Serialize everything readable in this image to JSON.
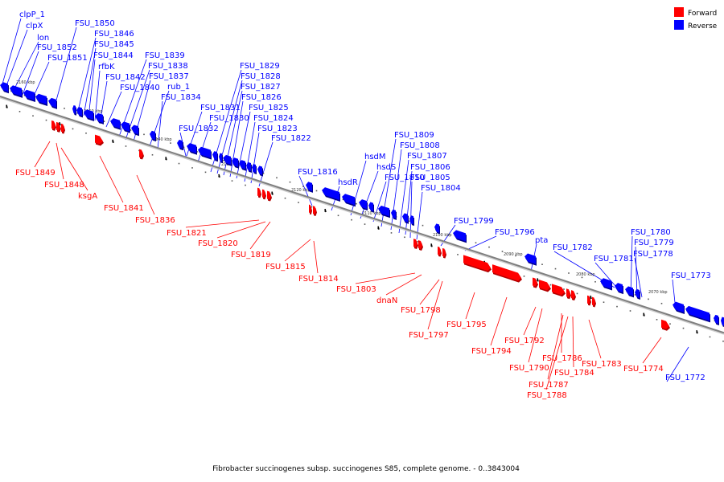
{
  "caption": "Fibrobacter succinogenes subsp. succinogenes S85, complete genome. - 0..3843004",
  "legend": [
    {
      "label": "Forward",
      "color": "#ff0000"
    },
    {
      "label": "Reverse",
      "color": "#0000ff"
    }
  ],
  "colors": {
    "forward": "#ff0000",
    "reverse": "#0000ff",
    "axis": "#7f7f7f"
  },
  "axis_ticks": [
    "2160 kbp",
    "2150 kbp",
    "2140 kbp",
    "2130 kbp",
    "2120 kbp",
    "2110 kbp",
    "2100 kbp",
    "2090 kbp",
    "2080 kbp",
    "2070 kbp"
  ],
  "reverse_labels": [
    "clpP_1",
    "clpX",
    "lon",
    "FSU_1852",
    "FSU_1851",
    "FSU_1850",
    "FSU_1846",
    "FSU_1845",
    "FSU_1844",
    "rfbK",
    "FSU_1842",
    "FSU_1840",
    "FSU_1839",
    "FSU_1838",
    "FSU_1837",
    "rub_1",
    "FSU_1834",
    "FSU_1831",
    "FSU_1830",
    "FSU_1832",
    "FSU_1829",
    "FSU_1828",
    "FSU_1827",
    "FSU_1826",
    "FSU_1825",
    "FSU_1824",
    "FSU_1823",
    "FSU_1822",
    "FSU_1816",
    "hsdR",
    "hsdM",
    "hsdS",
    "FSU_1810",
    "FSU_1809",
    "FSU_1808",
    "FSU_1807",
    "FSU_1806",
    "FSU_1805",
    "FSU_1804",
    "FSU_1799",
    "FSU_1796",
    "pta",
    "FSU_1782",
    "FSU_1781",
    "FSU_1780",
    "FSU_1779",
    "FSU_1778",
    "FSU_1773",
    "FSU_1772"
  ],
  "forward_labels": [
    "FSU_1849",
    "FSU_1848",
    "ksgA",
    "FSU_1841",
    "FSU_1836",
    "FSU_1821",
    "FSU_1820",
    "FSU_1819",
    "FSU_1815",
    "FSU_1814",
    "FSU_1803",
    "dnaN",
    "FSU_1798",
    "FSU_1797",
    "FSU_1795",
    "FSU_1794",
    "FSU_1792",
    "FSU_1790",
    "FSU_1786",
    "FSU_1787",
    "FSU_1788",
    "FSU_1784",
    "FSU_1783",
    "FSU_1774"
  ]
}
